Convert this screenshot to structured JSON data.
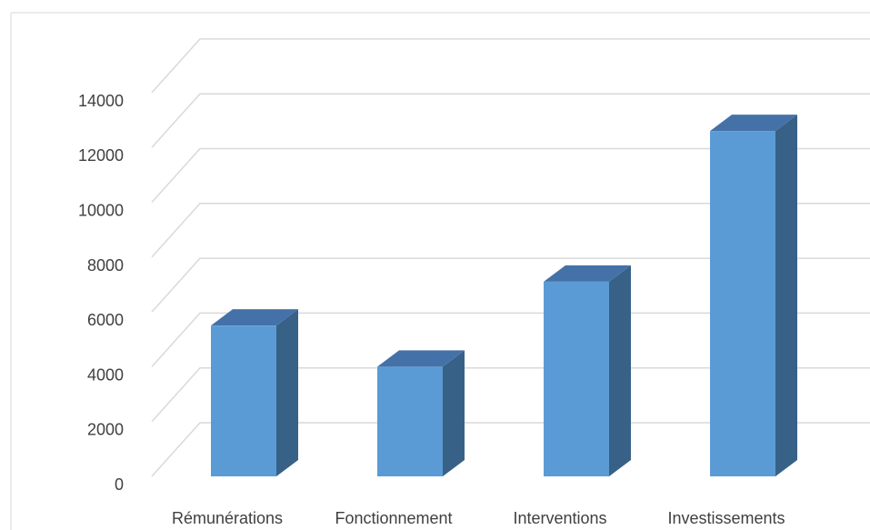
{
  "chart_data": {
    "type": "bar",
    "style": "3d-column",
    "categories": [
      "Rémunérations",
      "Fonctionnement",
      "Interventions",
      "Investissements"
    ],
    "values": [
      5500,
      4000,
      7100,
      12600
    ],
    "ylim": [
      0,
      14000
    ],
    "yticks": [
      0,
      2000,
      4000,
      6000,
      8000,
      10000,
      12000,
      14000
    ],
    "grid": true,
    "legend": "none",
    "colors": {
      "front": "#5b9bd5",
      "top": "#4472a8",
      "side": "#386187",
      "grid": "#d9d9d9",
      "text": "#404040"
    }
  }
}
